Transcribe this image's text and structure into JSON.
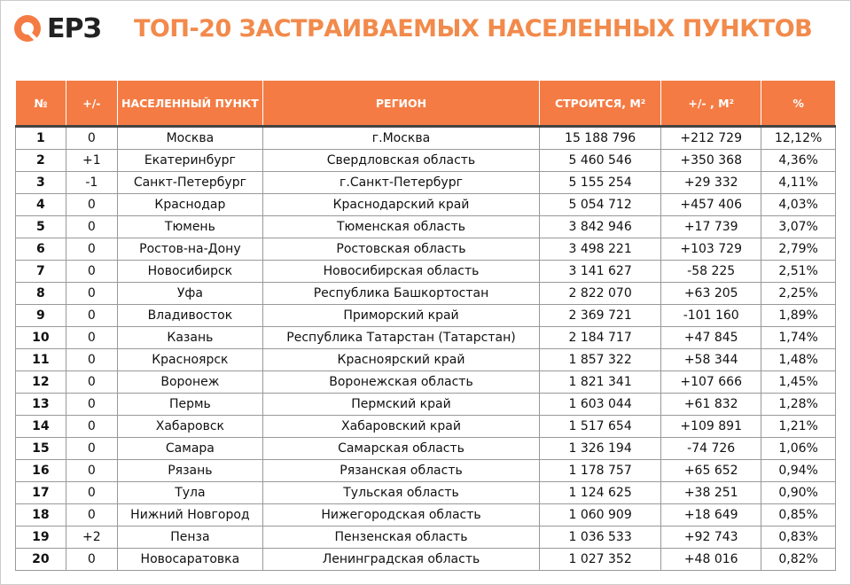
{
  "header": {
    "logo": "ЕРЗ",
    "title": "ТОП-20 ЗАСТРАИВАЕМЫХ НАСЕЛЕННЫХ ПУНКТОВ"
  },
  "table": {
    "columns": [
      "№",
      "+/-",
      "НАСЕЛЕННЫЙ ПУНКТ",
      "РЕГИОН",
      "СТРОИТСЯ, М²",
      "+/- , М²",
      "%"
    ],
    "rows": [
      [
        "1",
        "0",
        "Москва",
        "г.Москва",
        "15 188 796",
        "+212 729",
        "12,12%"
      ],
      [
        "2",
        "+1",
        "Екатеринбург",
        "Свердловская область",
        "5 460 546",
        "+350 368",
        "4,36%"
      ],
      [
        "3",
        "-1",
        "Санкт-Петербург",
        "г.Санкт-Петербург",
        "5 155 254",
        "+29 332",
        "4,11%"
      ],
      [
        "4",
        "0",
        "Краснодар",
        "Краснодарский край",
        "5 054 712",
        "+457 406",
        "4,03%"
      ],
      [
        "5",
        "0",
        "Тюмень",
        "Тюменская область",
        "3 842 946",
        "+17 739",
        "3,07%"
      ],
      [
        "6",
        "0",
        "Ростов-на-Дону",
        "Ростовская область",
        "3 498 221",
        "+103 729",
        "2,79%"
      ],
      [
        "7",
        "0",
        "Новосибирск",
        "Новосибирская область",
        "3 141 627",
        "-58 225",
        "2,51%"
      ],
      [
        "8",
        "0",
        "Уфа",
        "Республика Башкортостан",
        "2 822 070",
        "+63 205",
        "2,25%"
      ],
      [
        "9",
        "0",
        "Владивосток",
        "Приморский край",
        "2 369 721",
        "-101 160",
        "1,89%"
      ],
      [
        "10",
        "0",
        "Казань",
        "Республика Татарстан (Татарстан)",
        "2 184 717",
        "+47 845",
        "1,74%"
      ],
      [
        "11",
        "0",
        "Красноярск",
        "Красноярский край",
        "1 857 322",
        "+58 344",
        "1,48%"
      ],
      [
        "12",
        "0",
        "Воронеж",
        "Воронежская область",
        "1 821 341",
        "+107 666",
        "1,45%"
      ],
      [
        "13",
        "0",
        "Пермь",
        "Пермский край",
        "1 603 044",
        "+61 832",
        "1,28%"
      ],
      [
        "14",
        "0",
        "Хабаровск",
        "Хабаровский край",
        "1 517 654",
        "+109 891",
        "1,21%"
      ],
      [
        "15",
        "0",
        "Самара",
        "Самарская область",
        "1 326 194",
        "-74 726",
        "1,06%"
      ],
      [
        "16",
        "0",
        "Рязань",
        "Рязанская область",
        "1 178 757",
        "+65 652",
        "0,94%"
      ],
      [
        "17",
        "0",
        "Тула",
        "Тульская область",
        "1 124 625",
        "+38 251",
        "0,90%"
      ],
      [
        "18",
        "0",
        "Нижний Новгород",
        "Нижегородская область",
        "1 060 909",
        "+18 649",
        "0,85%"
      ],
      [
        "19",
        "+2",
        "Пенза",
        "Пензенская область",
        "1 036 533",
        "+92 743",
        "0,83%"
      ],
      [
        "20",
        "0",
        "Новосаратовка",
        "Ленинградская область",
        "1 027 352",
        "+48 016",
        "0,82%"
      ]
    ]
  }
}
